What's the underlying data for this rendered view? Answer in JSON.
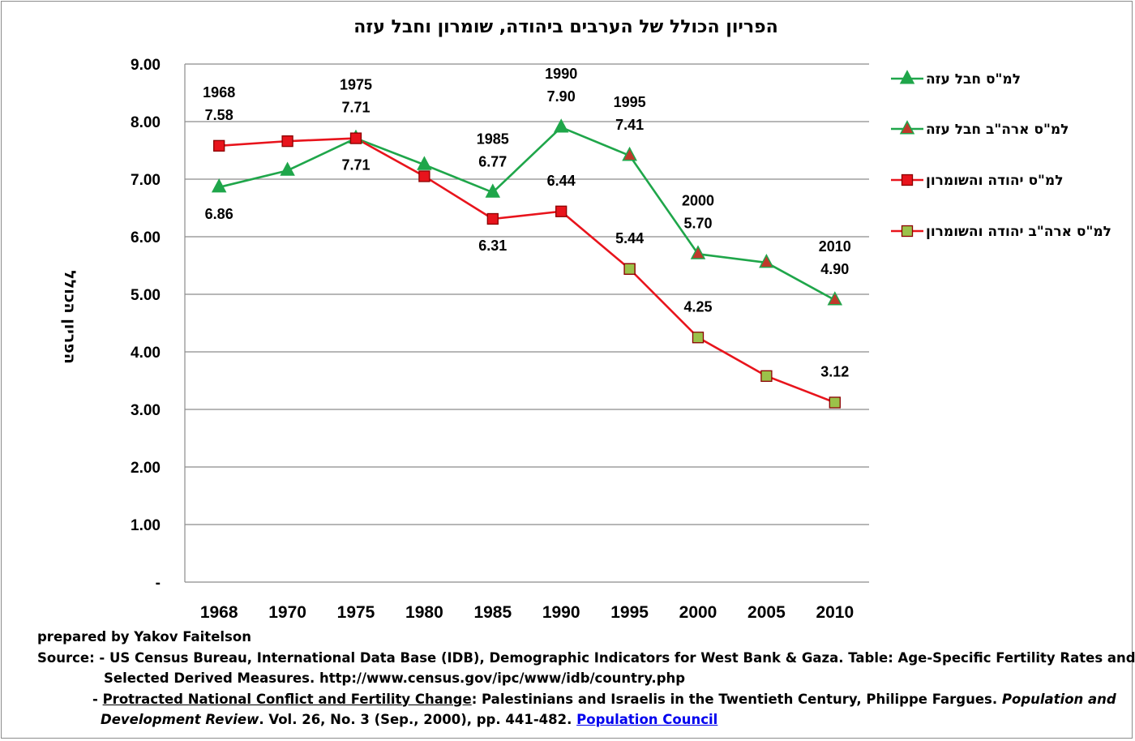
{
  "chart_data": {
    "type": "line",
    "title": "הפריון הכולל של הערבים ביהודה, שומרון וחבל עזה",
    "xlabel": "",
    "ylabel": "הפריון הכולל",
    "categories": [
      "1968",
      "1970",
      "1975",
      "1980",
      "1985",
      "1990",
      "1995",
      "2000",
      "2005",
      "2010"
    ],
    "ylim": [
      0,
      9
    ],
    "yticks": [
      "-",
      "1.00",
      "2.00",
      "3.00",
      "4.00",
      "5.00",
      "6.00",
      "7.00",
      "8.00",
      "9.00"
    ],
    "grid": true,
    "legend_position": "right",
    "series": [
      {
        "name": "למ\"ס חבל עזה",
        "color": "#1fa64a",
        "marker": "triangle",
        "marker_fill": "#1fa64a",
        "marker_stroke": "#1fa64a",
        "values": [
          6.86,
          7.15,
          7.71,
          7.25,
          6.77,
          7.9,
          7.41,
          null,
          null,
          null
        ]
      },
      {
        "name": "למ\"ס ארה\"ב חבל עזה",
        "color": "#1fa64a",
        "marker": "triangle",
        "marker_fill": "#c0392b",
        "marker_stroke": "#1fa64a",
        "values": [
          null,
          null,
          null,
          null,
          null,
          null,
          7.41,
          5.7,
          5.55,
          4.9
        ]
      },
      {
        "name": "למ\"ס יהודה והשומרון",
        "color": "#e8141c",
        "marker": "square",
        "marker_fill": "#e8141c",
        "marker_stroke": "#8b0000",
        "values": [
          7.58,
          7.66,
          7.71,
          7.05,
          6.31,
          6.44,
          5.44,
          null,
          null,
          null
        ]
      },
      {
        "name": "למ\"ס ארה\"ב יהודה והשומרון",
        "color": "#e8141c",
        "marker": "square",
        "marker_fill": "#9bc24a",
        "marker_stroke": "#8b0000",
        "values": [
          null,
          null,
          null,
          null,
          null,
          null,
          5.44,
          4.25,
          3.58,
          3.12
        ]
      }
    ],
    "annotations": [
      {
        "text": "1968",
        "x": "1968",
        "y": 7.58,
        "pos": "above2"
      },
      {
        "text": "7.58",
        "x": "1968",
        "y": 7.58,
        "pos": "above1"
      },
      {
        "text": "6.86",
        "x": "1968",
        "y": 6.86,
        "pos": "below"
      },
      {
        "text": "1975",
        "x": "1975",
        "y": 7.71,
        "pos": "above2"
      },
      {
        "text": "7.71",
        "x": "1975",
        "y": 7.71,
        "pos": "above1"
      },
      {
        "text": "7.71",
        "x": "1975",
        "y": 7.71,
        "pos": "below"
      },
      {
        "text": "1985",
        "x": "1985",
        "y": 6.77,
        "pos": "above2"
      },
      {
        "text": "6.77",
        "x": "1985",
        "y": 6.77,
        "pos": "above1"
      },
      {
        "text": "6.31",
        "x": "1985",
        "y": 6.31,
        "pos": "below"
      },
      {
        "text": "1990",
        "x": "1990",
        "y": 7.9,
        "pos": "above2"
      },
      {
        "text": "7.90",
        "x": "1990",
        "y": 7.9,
        "pos": "above1"
      },
      {
        "text": "6.44",
        "x": "1990",
        "y": 6.44,
        "pos": "above1"
      },
      {
        "text": "1995",
        "x": "1995",
        "y": 7.41,
        "pos": "above2"
      },
      {
        "text": "7.41",
        "x": "1995",
        "y": 7.41,
        "pos": "above1"
      },
      {
        "text": "5.44",
        "x": "1995",
        "y": 5.44,
        "pos": "above1"
      },
      {
        "text": "2000",
        "x": "2000",
        "y": 5.7,
        "pos": "above2"
      },
      {
        "text": "5.70",
        "x": "2000",
        "y": 5.7,
        "pos": "above1"
      },
      {
        "text": "4.25",
        "x": "2000",
        "y": 4.25,
        "pos": "above1"
      },
      {
        "text": "2010",
        "x": "2010",
        "y": 4.9,
        "pos": "above2"
      },
      {
        "text": "4.90",
        "x": "2010",
        "y": 4.9,
        "pos": "above1"
      },
      {
        "text": "3.12",
        "x": "2010",
        "y": 3.12,
        "pos": "above1"
      }
    ]
  },
  "notes": {
    "prepared": "prepared by Yakov Faitelson",
    "source_prefix": "Source: - ",
    "source1_a": "US Census Bureau, International Data Base (IDB), Demographic Indicators for West Bank & Gaza. Table: Age-Specific Fertility Rates and",
    "source1_b": "Selected Derived Measures. http://www.census.gov/ipc/www/idb/country.php",
    "source2_prefix": "- ",
    "source2_title": "Protracted National Conflict and Fertility Change",
    "source2_rest": ": Palestinians and Israelis in the Twentieth Century, Philippe Fargues. ",
    "source2_journal": "Population and",
    "source2_journal_b": "Development Review",
    "source2_details": ". Vol. 26, No. 3 (Sep., 2000), pp. 441-482. ",
    "source2_link": "Population Council"
  }
}
